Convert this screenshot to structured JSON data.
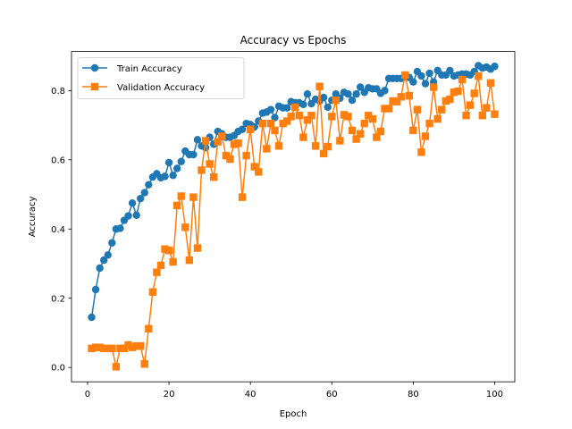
{
  "chart_data": {
    "type": "line",
    "title": "Accuracy vs Epochs",
    "xlabel": "Epoch",
    "ylabel": "Accuracy",
    "xlim": [
      -3.95,
      104.95
    ],
    "ylim": [
      -0.0415,
      0.913
    ],
    "xticks": [
      0,
      20,
      40,
      60,
      80,
      100
    ],
    "yticks": [
      0.0,
      0.2,
      0.4,
      0.6,
      0.8
    ],
    "grid": false,
    "legend_position": "upper left",
    "x": [
      1,
      2,
      3,
      4,
      5,
      6,
      7,
      8,
      9,
      10,
      11,
      12,
      13,
      14,
      15,
      16,
      17,
      18,
      19,
      20,
      21,
      22,
      23,
      24,
      25,
      26,
      27,
      28,
      29,
      30,
      31,
      32,
      33,
      34,
      35,
      36,
      37,
      38,
      39,
      40,
      41,
      42,
      43,
      44,
      45,
      46,
      47,
      48,
      49,
      50,
      51,
      52,
      53,
      54,
      55,
      56,
      57,
      58,
      59,
      60,
      61,
      62,
      63,
      64,
      65,
      66,
      67,
      68,
      69,
      70,
      71,
      72,
      73,
      74,
      75,
      76,
      77,
      78,
      79,
      80,
      81,
      82,
      83,
      84,
      85,
      86,
      87,
      88,
      89,
      90,
      91,
      92,
      93,
      94,
      95,
      96,
      97,
      98,
      99,
      100
    ],
    "series": [
      {
        "name": "Train Accuracy",
        "color": "#1f77b4",
        "marker": "circle",
        "values": [
          0.145,
          0.225,
          0.287,
          0.31,
          0.325,
          0.36,
          0.4,
          0.402,
          0.425,
          0.438,
          0.475,
          0.44,
          0.488,
          0.505,
          0.528,
          0.55,
          0.56,
          0.548,
          0.552,
          0.592,
          0.555,
          0.575,
          0.595,
          0.625,
          0.615,
          0.615,
          0.658,
          0.64,
          0.635,
          0.665,
          0.645,
          0.682,
          0.675,
          0.665,
          0.665,
          0.67,
          0.682,
          0.688,
          0.705,
          0.702,
          0.695,
          0.712,
          0.735,
          0.738,
          0.745,
          0.722,
          0.755,
          0.75,
          0.75,
          0.768,
          0.765,
          0.765,
          0.76,
          0.79,
          0.762,
          0.775,
          0.77,
          0.78,
          0.752,
          0.772,
          0.79,
          0.778,
          0.795,
          0.79,
          0.772,
          0.79,
          0.81,
          0.795,
          0.808,
          0.805,
          0.805,
          0.792,
          0.8,
          0.835,
          0.835,
          0.835,
          0.835,
          0.84,
          0.838,
          0.825,
          0.855,
          0.842,
          0.82,
          0.85,
          0.825,
          0.858,
          0.845,
          0.845,
          0.858,
          0.842,
          0.845,
          0.848,
          0.848,
          0.845,
          0.855,
          0.872,
          0.865,
          0.868,
          0.862,
          0.87
        ]
      },
      {
        "name": "Validation Accuracy",
        "color": "#ff7f0e",
        "marker": "square",
        "values": [
          0.055,
          0.058,
          0.058,
          0.055,
          0.055,
          0.055,
          0.002,
          0.055,
          0.055,
          0.065,
          0.058,
          0.062,
          0.062,
          0.01,
          0.112,
          0.218,
          0.275,
          0.295,
          0.342,
          0.338,
          0.305,
          0.468,
          0.495,
          0.405,
          0.31,
          0.492,
          0.345,
          0.57,
          0.655,
          0.588,
          0.55,
          0.652,
          0.668,
          0.612,
          0.602,
          0.645,
          0.648,
          0.492,
          0.612,
          0.688,
          0.58,
          0.565,
          0.705,
          0.632,
          0.705,
          0.685,
          0.64,
          0.705,
          0.712,
          0.725,
          0.752,
          0.728,
          0.665,
          0.715,
          0.728,
          0.64,
          0.812,
          0.618,
          0.638,
          0.725,
          0.772,
          0.655,
          0.73,
          0.725,
          0.685,
          0.66,
          0.675,
          0.705,
          0.728,
          0.718,
          0.665,
          0.682,
          0.748,
          0.748,
          0.77,
          0.768,
          0.782,
          0.845,
          0.785,
          0.685,
          0.745,
          0.622,
          0.668,
          0.705,
          0.81,
          0.718,
          0.745,
          0.77,
          0.775,
          0.795,
          0.798,
          0.832,
          0.728,
          0.758,
          0.792,
          0.842,
          0.728,
          0.75,
          0.822,
          0.732
        ]
      }
    ]
  }
}
